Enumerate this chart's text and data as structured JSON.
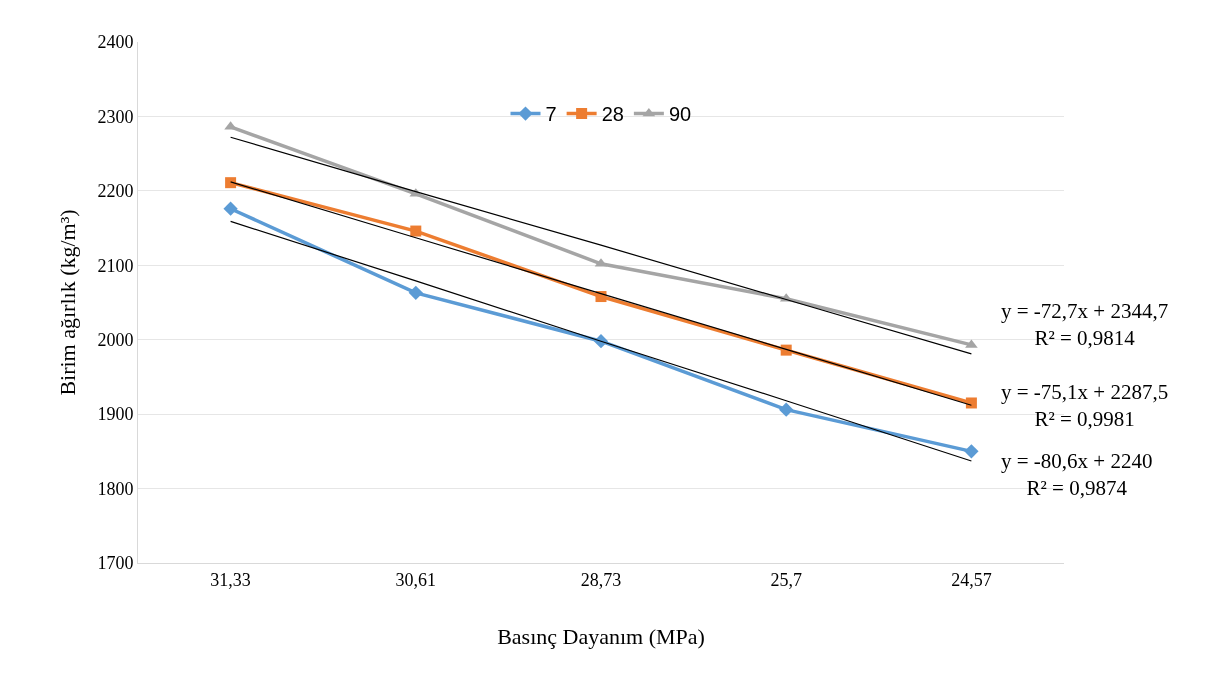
{
  "chart_data": {
    "type": "line",
    "xlabel": "Basınç Dayanım (MPa)",
    "ylabel": "Birim ağırlık (kg/m³)",
    "categories": [
      "31,33",
      "30,61",
      "28,73",
      "25,7",
      "24,57"
    ],
    "ylim": [
      1700,
      2400
    ],
    "yticks": [
      1700,
      1800,
      1900,
      2000,
      2100,
      2200,
      2300,
      2400
    ],
    "grid": "y",
    "legend": "top",
    "series": [
      {
        "name": "7",
        "color": "#5b9bd5",
        "marker": "diamond",
        "values": [
          2176,
          2063,
          1998,
          1906,
          1850
        ]
      },
      {
        "name": "28",
        "color": "#ed7d31",
        "marker": "square",
        "values": [
          2211,
          2146,
          2058,
          1986,
          1915
        ]
      },
      {
        "name": "90",
        "color": "#a5a5a5",
        "marker": "triangle",
        "values": [
          2286,
          2196,
          2102,
          2055,
          1993
        ]
      },
      {
        "color": "#000000",
        "marker": "none",
        "values": [
          2159,
          2079,
          1998,
          1918,
          1837
        ]
      },
      {
        "color": "#000000",
        "marker": "none",
        "values": [
          2212,
          2137,
          2062,
          1987,
          1912
        ]
      },
      {
        "color": "#000000",
        "marker": "none",
        "values": [
          2272,
          2199,
          2127,
          2054,
          1981
        ]
      }
    ],
    "annotations": [
      "y = -72,7x + 2344,7\nR² = 0,9814",
      "y = -75,1x + 2287,5\nR² = 0,9981",
      "y = -80,6x + 2240\nR² = 0,9874"
    ]
  }
}
